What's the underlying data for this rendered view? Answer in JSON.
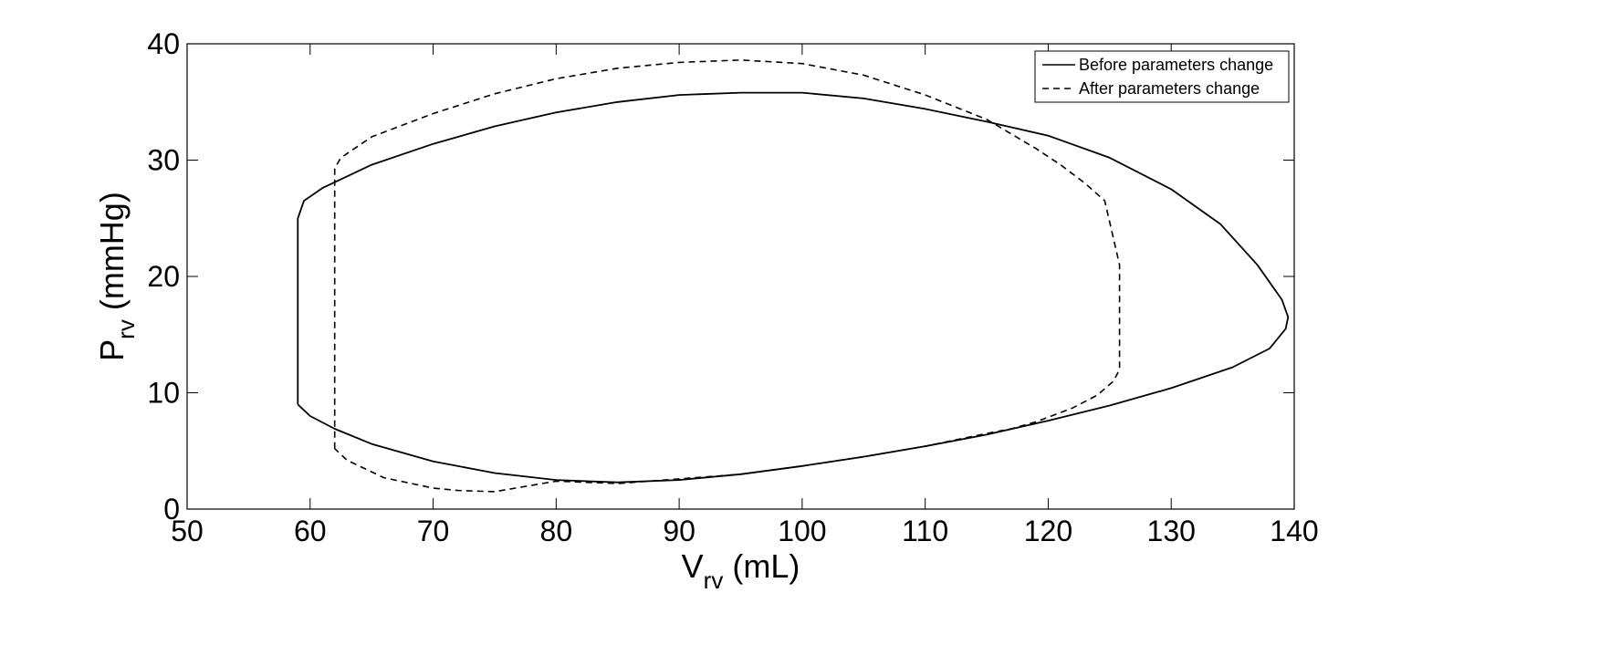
{
  "chart_data": {
    "type": "line",
    "title": "",
    "xlabel": {
      "main": "V",
      "sub": "rv",
      "unit": " (mL)"
    },
    "ylabel": {
      "main": "P",
      "sub": "rv",
      "unit": " (mmHg)"
    },
    "xlim": [
      50,
      140
    ],
    "ylim": [
      0,
      40
    ],
    "xticks": [
      "50",
      "60",
      "70",
      "80",
      "90",
      "100",
      "110",
      "120",
      "130",
      "140"
    ],
    "yticks": [
      "0",
      "10",
      "20",
      "30",
      "40"
    ],
    "grid": false,
    "legend": {
      "placement": "top-right",
      "entries": [
        "Before parameters change",
        "After parameters change"
      ]
    },
    "series": [
      {
        "name": "Before parameters change",
        "style": "solid",
        "color": "#000000",
        "x": [
          59,
          59,
          59.5,
          61,
          65,
          70,
          75,
          80,
          85,
          90,
          95,
          100,
          105,
          110,
          115,
          120,
          125,
          130,
          134,
          137,
          139,
          139.5,
          139.3,
          138,
          135,
          130,
          125,
          120,
          115,
          110,
          105,
          100,
          95,
          90,
          85,
          80,
          75,
          70,
          65,
          62,
          60,
          59
        ],
        "y": [
          9,
          25,
          26.5,
          27.6,
          29.6,
          31.4,
          32.9,
          34.1,
          35.0,
          35.6,
          35.8,
          35.8,
          35.3,
          34.4,
          33.3,
          32.1,
          30.2,
          27.5,
          24.5,
          21.0,
          18.0,
          16.5,
          15.5,
          13.8,
          12.2,
          10.4,
          8.9,
          7.6,
          6.4,
          5.4,
          4.5,
          3.7,
          3.0,
          2.5,
          2.3,
          2.5,
          3.1,
          4.1,
          5.6,
          6.9,
          8.0,
          9
        ]
      },
      {
        "name": "After parameters change",
        "style": "dashed",
        "color": "#000000",
        "x": [
          62,
          62,
          62.5,
          65,
          70,
          75,
          80,
          85,
          90,
          95,
          100,
          105,
          110,
          115,
          119,
          121,
          123,
          124.6,
          125.8,
          125.8,
          125.3,
          124,
          122,
          119,
          117,
          115,
          110,
          105,
          100,
          95,
          90,
          85,
          80,
          75,
          72,
          70,
          66,
          63,
          62
        ],
        "y": [
          5.2,
          29.3,
          30.2,
          32.0,
          34.0,
          35.7,
          37.0,
          37.9,
          38.4,
          38.6,
          38.3,
          37.3,
          35.6,
          33.5,
          31.0,
          29.6,
          28.0,
          26.5,
          21.0,
          12.0,
          11.0,
          9.8,
          8.7,
          7.5,
          6.9,
          6.5,
          5.4,
          4.5,
          3.7,
          3.0,
          2.6,
          2.2,
          2.4,
          1.5,
          1.6,
          1.8,
          2.7,
          4.2,
          5.2
        ]
      }
    ]
  }
}
